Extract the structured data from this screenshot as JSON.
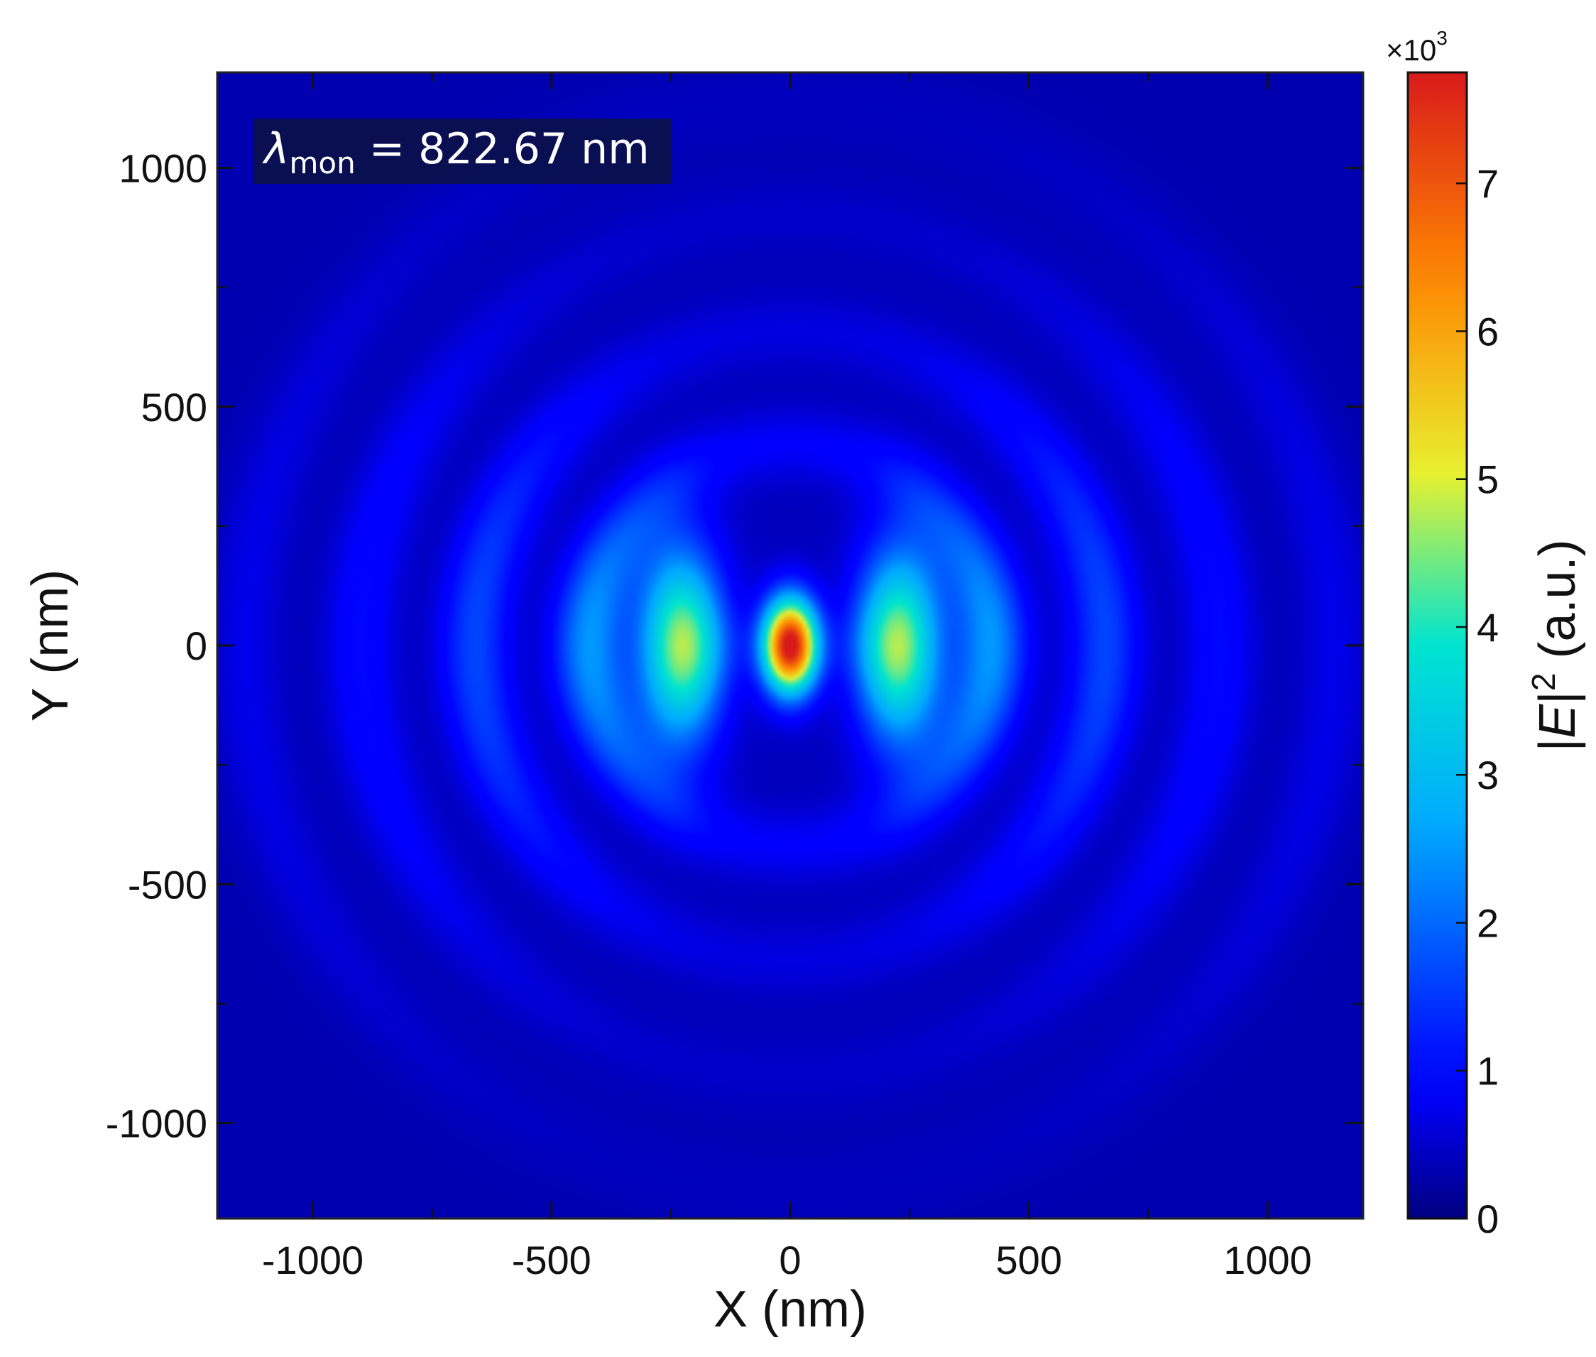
{
  "chart_data": {
    "type": "heatmap",
    "quantity": "|E|^2",
    "xlabel": "X (nm)",
    "ylabel": "Y (nm)",
    "xlim": [
      -1200,
      1200
    ],
    "ylim": [
      -1200,
      1200
    ],
    "xticks": [
      -1000,
      -500,
      0,
      500,
      1000
    ],
    "yticks": [
      -1000,
      -500,
      0,
      500,
      1000
    ],
    "xtick_labels": [
      "-1000",
      "-500",
      "0",
      "500",
      "1000"
    ],
    "ytick_labels": [
      "-1000",
      "-500",
      "0",
      "500",
      "1000"
    ],
    "annotation": {
      "symbol": "λ",
      "subscript": "mon",
      "value_text": " = 822.67 nm",
      "wavelength_nm": 822.67
    },
    "colorbar": {
      "label_prefix": "|",
      "label_var": "E",
      "label_mid": "|",
      "label_sup": "2",
      "label_suffix": " (a.u.)",
      "scale_prefix": "×10",
      "scale_exp": "3",
      "range": [
        0,
        7.75
      ],
      "ticks": [
        0,
        1,
        2,
        3,
        4,
        5,
        6,
        7
      ],
      "tick_labels": [
        "0",
        "1",
        "2",
        "3",
        "4",
        "5",
        "6",
        "7"
      ],
      "colormap": "jet",
      "colors": [
        "#000080",
        "#0000ff",
        "#00a8ff",
        "#00e4d0",
        "#e8f030",
        "#ff8800",
        "#d81a1a"
      ]
    },
    "features": [
      {
        "name": "central hotspot",
        "x": 0,
        "y": 0,
        "peak": 7.7
      },
      {
        "name": "side lobe left",
        "x": -225,
        "y": 0,
        "peak": 4.7
      },
      {
        "name": "side lobe right",
        "x": 225,
        "y": 0,
        "peak": 4.7
      },
      {
        "name": "ring 2",
        "radius_nm": 420,
        "peak": 2.4
      },
      {
        "name": "ring 3",
        "radius_nm": 660,
        "peak": 1.6
      },
      {
        "name": "ring 4",
        "radius_nm": 900,
        "peak": 1.0
      },
      {
        "name": "ring 5",
        "radius_nm": 1140,
        "peak": 0.7
      }
    ],
    "grid": false,
    "legend": "none"
  }
}
